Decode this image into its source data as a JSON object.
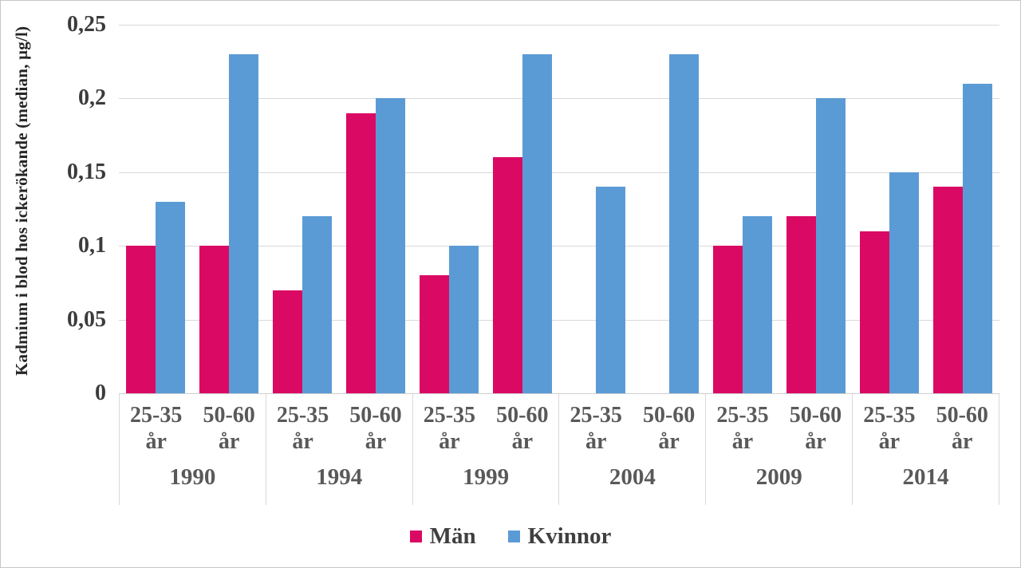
{
  "chart_data": {
    "type": "bar",
    "title": "",
    "ylabel": "Kadmium i blod hos ickerökande (median, µg/l)",
    "xlabel": "",
    "ylim": [
      0,
      0.25
    ],
    "yticks": [
      0.25,
      0.2,
      0.15,
      0.1,
      0.05,
      0
    ],
    "ytick_labels": [
      "0,25",
      "0,2",
      "0,15",
      "0,1",
      "0,05",
      "0"
    ],
    "grid": "horizontal gridlines on, light gray",
    "legend_position": "bottom center",
    "group_years": [
      "1990",
      "1994",
      "1999",
      "2004",
      "2009",
      "2014"
    ],
    "age_labels": [
      [
        "25-35",
        "år"
      ],
      [
        "50-60",
        "år"
      ]
    ],
    "series": [
      {
        "name": "Män",
        "color": "#DA0A64",
        "values": [
          [
            0.1,
            0.1
          ],
          [
            0.07,
            0.19
          ],
          [
            0.08,
            0.16
          ],
          [
            null,
            null
          ],
          [
            0.1,
            0.12
          ],
          [
            0.11,
            0.14
          ]
        ]
      },
      {
        "name": "Kvinnor",
        "color": "#5B9BD5",
        "values": [
          [
            0.13,
            0.23
          ],
          [
            0.12,
            0.2
          ],
          [
            0.1,
            0.23
          ],
          [
            0.14,
            0.23
          ],
          [
            0.12,
            0.2
          ],
          [
            0.15,
            0.21
          ]
        ]
      }
    ]
  },
  "legend": {
    "items": [
      {
        "label": "Män",
        "color": "#DA0A64"
      },
      {
        "label": "Kvinnor",
        "color": "#5B9BD5"
      }
    ]
  },
  "colors": {
    "gridline": "#D9D9D9",
    "axis_text": "#595959",
    "tick_text": "#3B3B3B",
    "frame_border": "#C6C6C6"
  }
}
